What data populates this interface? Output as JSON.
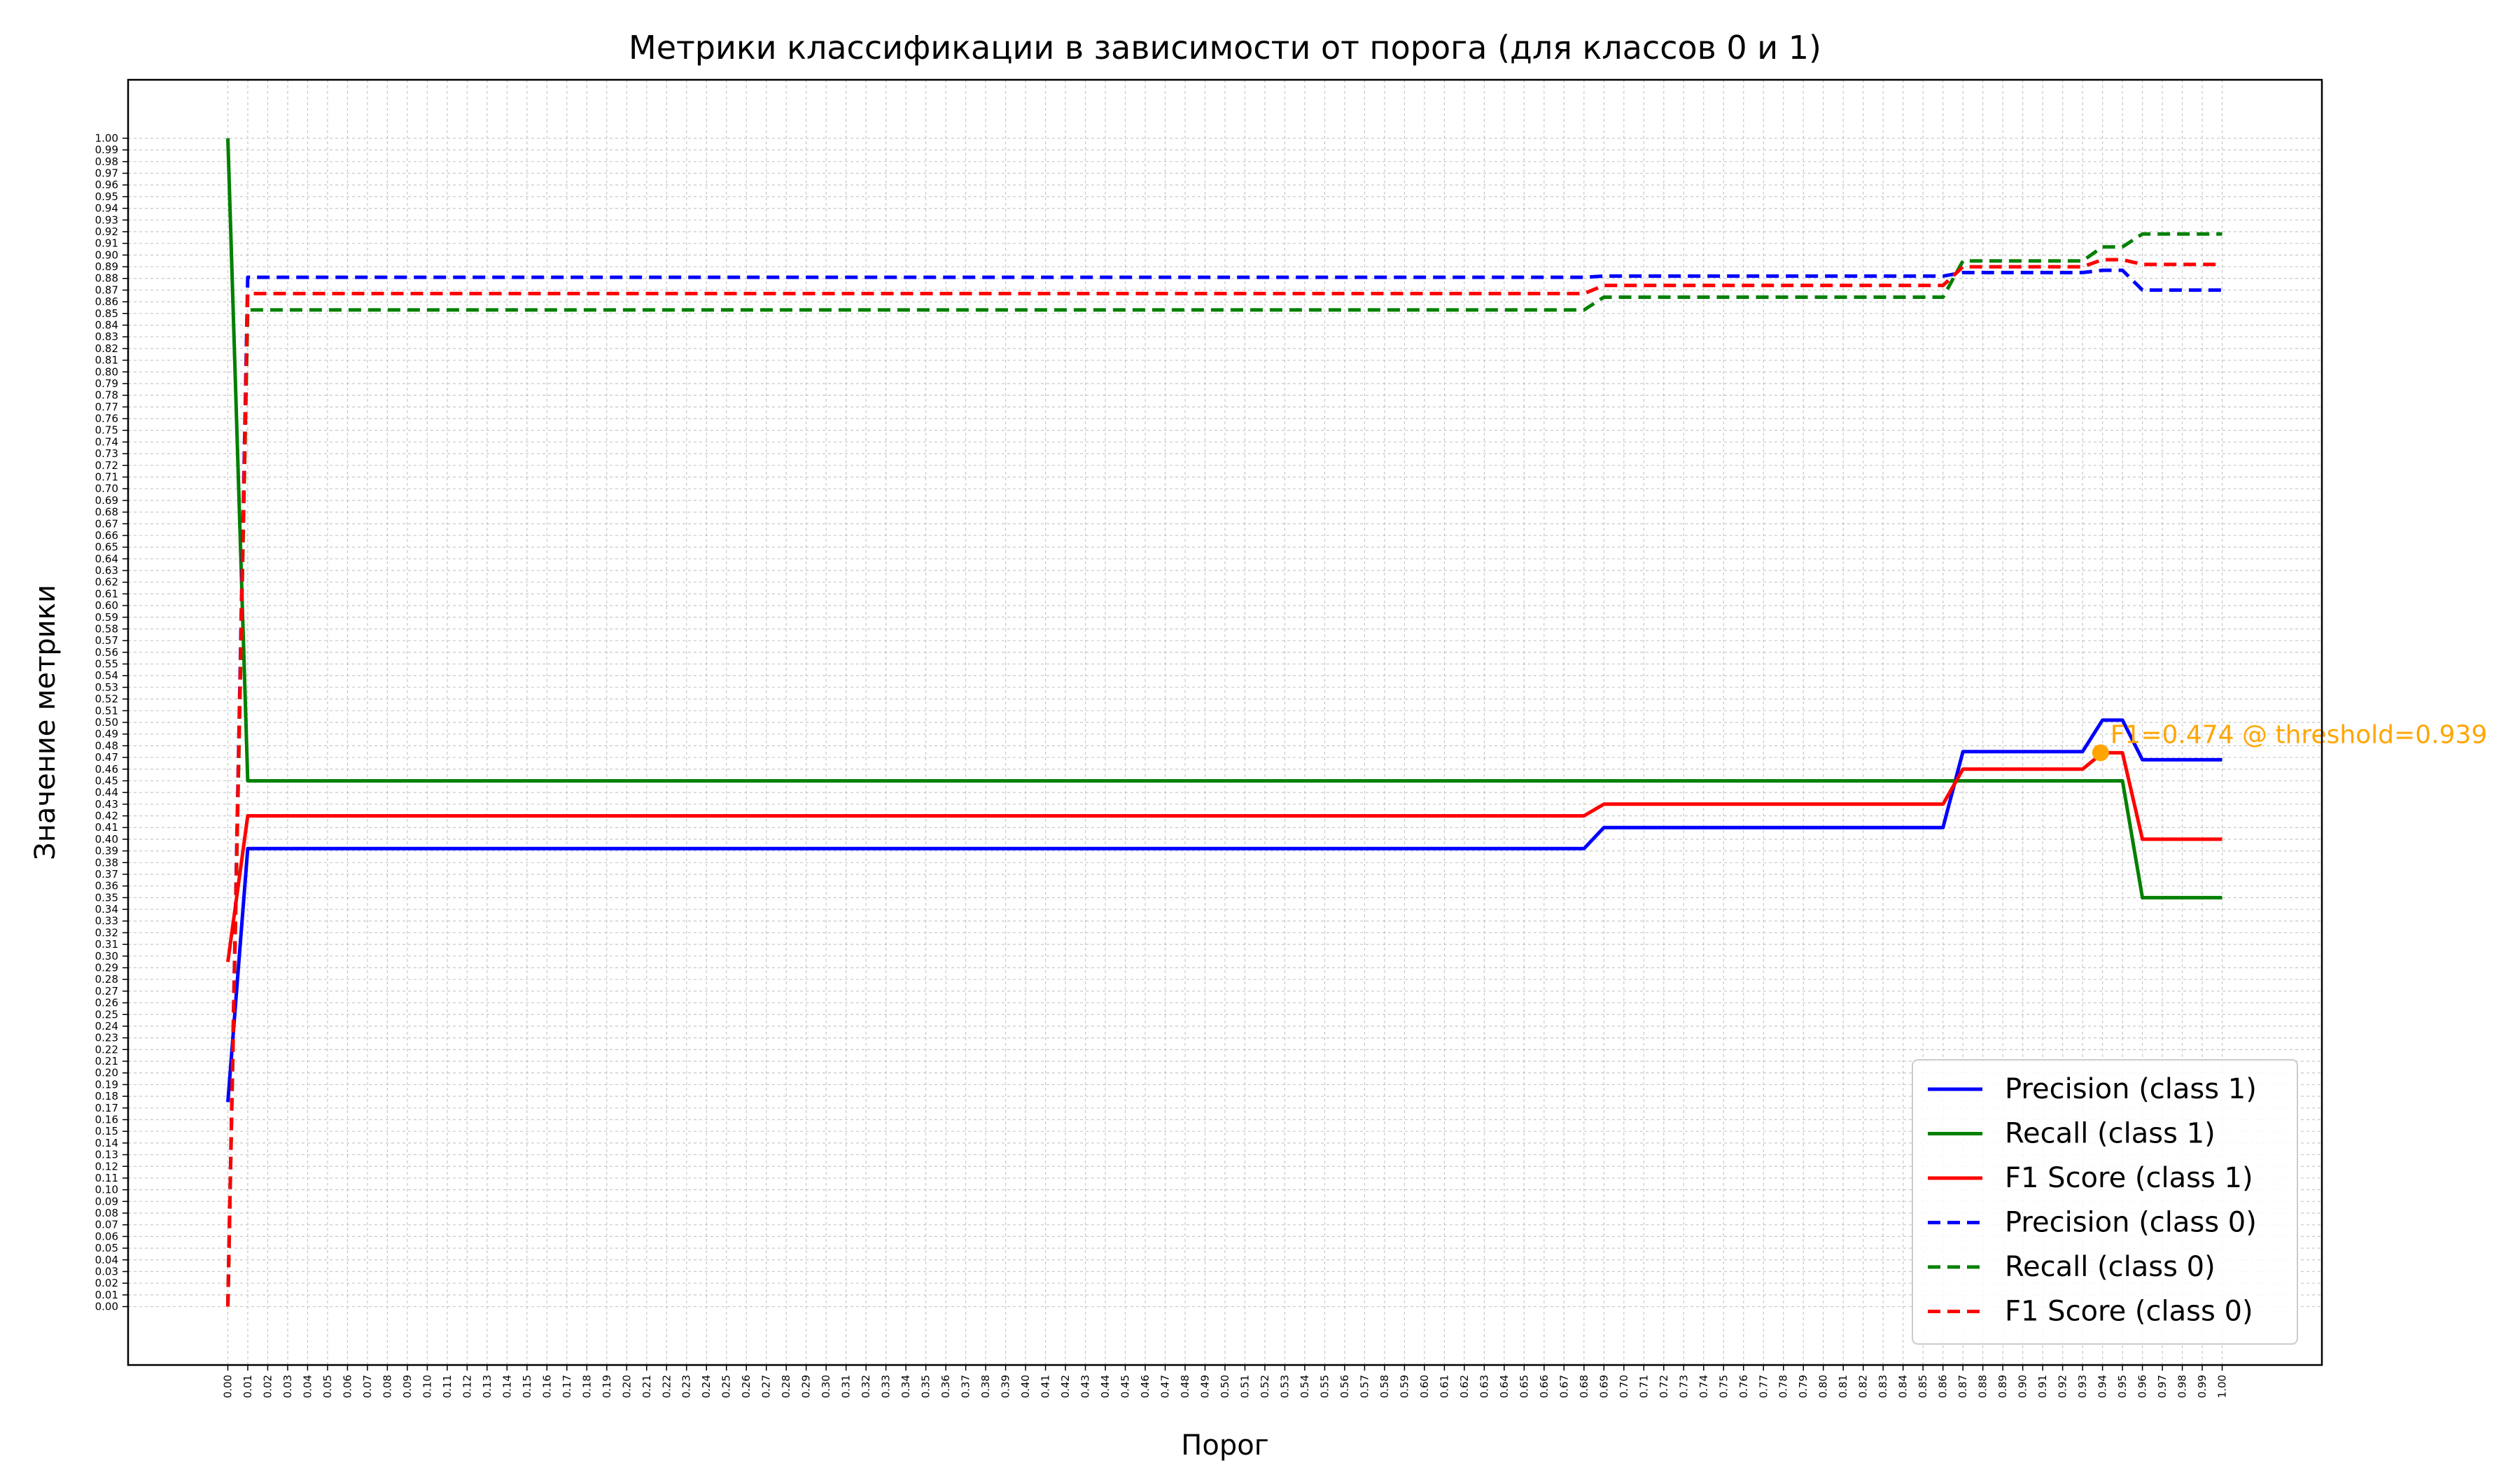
{
  "colors": {
    "precision": "#0000ff",
    "recall": "#008000",
    "f1": "#ff0000",
    "annotation": "#ffa500",
    "grid": "#b0b0b0"
  },
  "chart_data": {
    "type": "line",
    "title": "Метрики классификации в зависимости от порога (для классов 0 и 1)",
    "xlabel": "Порог",
    "ylabel": "Значение метрики",
    "xlim": [
      -0.05,
      1.05
    ],
    "ylim": [
      -0.05,
      1.05
    ],
    "grid": true,
    "legend_position": "lower-right",
    "series": [
      {
        "name": "Precision (class 1)",
        "color": "#0000ff",
        "style": "solid",
        "points": [
          [
            0.0,
            0.175
          ],
          [
            0.01,
            0.392
          ],
          [
            0.68,
            0.392
          ],
          [
            0.69,
            0.41
          ],
          [
            0.86,
            0.41
          ],
          [
            0.87,
            0.475
          ],
          [
            0.93,
            0.475
          ],
          [
            0.94,
            0.502
          ],
          [
            0.95,
            0.502
          ],
          [
            0.96,
            0.468
          ],
          [
            1.0,
            0.468
          ]
        ]
      },
      {
        "name": "Recall (class 1)",
        "color": "#008000",
        "style": "solid",
        "points": [
          [
            0.0,
            1.0
          ],
          [
            0.01,
            0.45
          ],
          [
            0.95,
            0.45
          ],
          [
            0.96,
            0.35
          ],
          [
            1.0,
            0.35
          ]
        ]
      },
      {
        "name": "F1 Score (class 1)",
        "color": "#ff0000",
        "style": "solid",
        "points": [
          [
            0.0,
            0.295
          ],
          [
            0.01,
            0.42
          ],
          [
            0.68,
            0.42
          ],
          [
            0.69,
            0.43
          ],
          [
            0.86,
            0.43
          ],
          [
            0.87,
            0.46
          ],
          [
            0.93,
            0.46
          ],
          [
            0.94,
            0.474
          ],
          [
            0.95,
            0.474
          ],
          [
            0.96,
            0.4
          ],
          [
            1.0,
            0.4
          ]
        ]
      },
      {
        "name": "Precision (class 0)",
        "color": "#0000ff",
        "style": "dashed",
        "points": [
          [
            0.0,
            0.0
          ],
          [
            0.01,
            0.881
          ],
          [
            0.68,
            0.881
          ],
          [
            0.69,
            0.882
          ],
          [
            0.86,
            0.882
          ],
          [
            0.87,
            0.885
          ],
          [
            0.93,
            0.885
          ],
          [
            0.94,
            0.887
          ],
          [
            0.95,
            0.887
          ],
          [
            0.96,
            0.87
          ],
          [
            1.0,
            0.87
          ]
        ]
      },
      {
        "name": "Recall (class 0)",
        "color": "#008000",
        "style": "dashed",
        "points": [
          [
            0.0,
            0.0
          ],
          [
            0.01,
            0.853
          ],
          [
            0.68,
            0.853
          ],
          [
            0.69,
            0.864
          ],
          [
            0.86,
            0.864
          ],
          [
            0.87,
            0.895
          ],
          [
            0.93,
            0.895
          ],
          [
            0.94,
            0.907
          ],
          [
            0.95,
            0.907
          ],
          [
            0.96,
            0.918
          ],
          [
            1.0,
            0.918
          ]
        ]
      },
      {
        "name": "F1 Score (class 0)",
        "color": "#ff0000",
        "style": "dashed",
        "points": [
          [
            0.0,
            0.0
          ],
          [
            0.01,
            0.867
          ],
          [
            0.68,
            0.867
          ],
          [
            0.69,
            0.874
          ],
          [
            0.86,
            0.874
          ],
          [
            0.87,
            0.89
          ],
          [
            0.93,
            0.89
          ],
          [
            0.94,
            0.896
          ],
          [
            0.95,
            0.896
          ],
          [
            0.96,
            0.892
          ],
          [
            1.0,
            0.892
          ]
        ]
      }
    ],
    "annotation": {
      "text": "F1=0.474 @ threshold=0.939",
      "x": 0.939,
      "y": 0.474
    }
  }
}
